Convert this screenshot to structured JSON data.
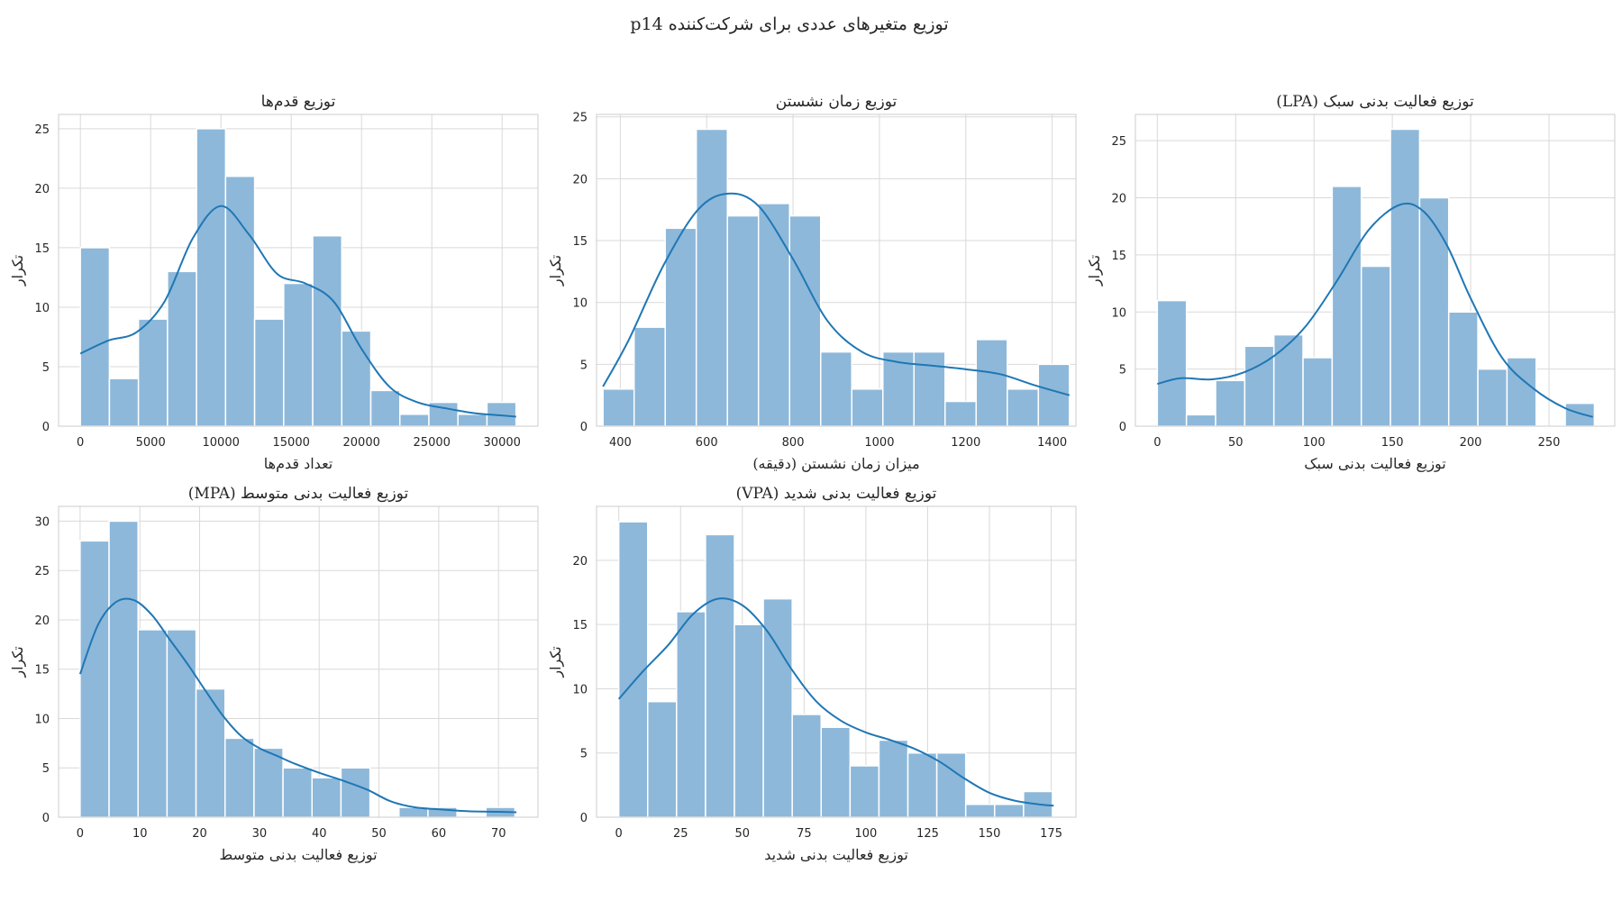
{
  "figure": {
    "title": "توزیع متغیرهای عددی برای شرکت‌کننده p14"
  },
  "colors": {
    "bar": "#8db8da",
    "bar_edge": "#ffffff",
    "kde": "#1f77b4",
    "grid": "#d9d9d9",
    "frame": "#cccccc"
  },
  "chart_data": [
    {
      "type": "bar",
      "title": "توزیع قدم‌ها",
      "xlabel": "تعداد قدم‌ها",
      "ylabel": "تکرار",
      "xlim": [
        -1550,
        32550
      ],
      "ylim": [
        0,
        26.2
      ],
      "xticks": [
        0,
        5000,
        10000,
        15000,
        20000,
        25000,
        30000
      ],
      "yticks": [
        0,
        5,
        10,
        15,
        20,
        25
      ],
      "bin_start": 0,
      "bin_width": 2066,
      "values": [
        15,
        4,
        9,
        13,
        25,
        21,
        9,
        12,
        16,
        8,
        3,
        1,
        2,
        1,
        2
      ],
      "kde": [
        [
          0,
          6.1
        ],
        [
          2000,
          7.2
        ],
        [
          4000,
          7.9
        ],
        [
          6000,
          10.5
        ],
        [
          8000,
          15.8
        ],
        [
          10000,
          18.5
        ],
        [
          12000,
          16.1
        ],
        [
          14000,
          12.8
        ],
        [
          16000,
          12.0
        ],
        [
          18000,
          10.5
        ],
        [
          20000,
          6.5
        ],
        [
          22000,
          3.3
        ],
        [
          24000,
          2.0
        ],
        [
          26000,
          1.5
        ],
        [
          28000,
          1.1
        ],
        [
          30000,
          0.9
        ],
        [
          31000,
          0.8
        ]
      ]
    },
    {
      "type": "bar",
      "title": "توزیع زمان نشستن",
      "xlabel": "میزان زمان نشستن (دقیقه)",
      "ylabel": "تکرار",
      "xlim": [
        345,
        1455
      ],
      "ylim": [
        0,
        25.2
      ],
      "xticks": [
        400,
        600,
        800,
        1000,
        1200,
        1400
      ],
      "yticks": [
        0,
        5,
        10,
        15,
        20,
        25
      ],
      "bin_start": 360,
      "bin_width": 72,
      "values": [
        3,
        8,
        16,
        24,
        17,
        18,
        17,
        6,
        3,
        6,
        6,
        2,
        7,
        3,
        5
      ],
      "kde": [
        [
          360,
          3.2
        ],
        [
          420,
          7.0
        ],
        [
          500,
          13.0
        ],
        [
          580,
          17.5
        ],
        [
          650,
          18.8
        ],
        [
          720,
          17.8
        ],
        [
          800,
          13.5
        ],
        [
          880,
          8.5
        ],
        [
          960,
          6.0
        ],
        [
          1040,
          5.2
        ],
        [
          1120,
          4.9
        ],
        [
          1200,
          4.6
        ],
        [
          1280,
          4.2
        ],
        [
          1360,
          3.3
        ],
        [
          1440,
          2.5
        ]
      ]
    },
    {
      "type": "bar",
      "title": "توزیع فعالیت بدنی سبک (LPA)",
      "xlabel": "توزیع فعالیت بدنی سبک",
      "ylabel": "تکرار",
      "xlim": [
        -14,
        292
      ],
      "ylim": [
        0,
        27.3
      ],
      "xticks": [
        0,
        50,
        100,
        150,
        200,
        250
      ],
      "yticks": [
        0,
        5,
        10,
        15,
        20,
        25
      ],
      "bin_start": 0,
      "bin_width": 18.6,
      "values": [
        11,
        1,
        4,
        7,
        8,
        6,
        21,
        14,
        26,
        20,
        10,
        5,
        6,
        0,
        2
      ],
      "kde": [
        [
          0,
          3.7
        ],
        [
          15,
          4.2
        ],
        [
          35,
          4.1
        ],
        [
          55,
          4.7
        ],
        [
          75,
          6.2
        ],
        [
          95,
          8.8
        ],
        [
          115,
          12.8
        ],
        [
          135,
          17.2
        ],
        [
          155,
          19.4
        ],
        [
          170,
          18.8
        ],
        [
          185,
          15.8
        ],
        [
          200,
          11.2
        ],
        [
          220,
          6.0
        ],
        [
          240,
          3.3
        ],
        [
          260,
          1.6
        ],
        [
          278,
          0.8
        ]
      ]
    },
    {
      "type": "bar",
      "title": "توزیع فعالیت بدنی متوسط (MPA)",
      "xlabel": "توزیع فعالیت بدنی متوسط",
      "ylabel": "تکرار",
      "xlim": [
        -3.6,
        76.6
      ],
      "ylim": [
        0,
        31.5
      ],
      "xticks": [
        0,
        10,
        20,
        30,
        40,
        50,
        60,
        70
      ],
      "yticks": [
        0,
        5,
        10,
        15,
        20,
        25,
        30
      ],
      "bin_start": 0,
      "bin_width": 4.85,
      "values": [
        28,
        30,
        19,
        19,
        13,
        8,
        7,
        5,
        4,
        5,
        0,
        1,
        1,
        0,
        1
      ],
      "kde": [
        [
          0,
          14.5
        ],
        [
          3,
          19.5
        ],
        [
          6,
          21.8
        ],
        [
          9,
          22.0
        ],
        [
          12,
          20.5
        ],
        [
          15,
          18.0
        ],
        [
          18,
          15.5
        ],
        [
          21,
          12.8
        ],
        [
          24,
          10.2
        ],
        [
          27,
          8.2
        ],
        [
          30,
          7.0
        ],
        [
          33,
          6.2
        ],
        [
          36,
          5.4
        ],
        [
          40,
          4.5
        ],
        [
          44,
          3.7
        ],
        [
          48,
          2.8
        ],
        [
          52,
          1.6
        ],
        [
          56,
          1.0
        ],
        [
          60,
          0.8
        ],
        [
          65,
          0.6
        ],
        [
          70,
          0.55
        ],
        [
          73,
          0.5
        ]
      ]
    },
    {
      "type": "bar",
      "title": "توزیع فعالیت بدنی شدید (VPA)",
      "xlabel": "توزیع فعالیت بدنی شدید",
      "ylabel": "تکرار",
      "xlim": [
        -9,
        185
      ],
      "ylim": [
        0,
        24.2
      ],
      "xticks": [
        0,
        25,
        50,
        75,
        100,
        125,
        150,
        175
      ],
      "yticks": [
        0,
        5,
        10,
        15,
        20
      ],
      "bin_start": 0,
      "bin_width": 11.7,
      "values": [
        23,
        9,
        16,
        22,
        15,
        17,
        8,
        7,
        4,
        6,
        5,
        5,
        1,
        1,
        2
      ],
      "kde": [
        [
          0,
          9.2
        ],
        [
          10,
          11.4
        ],
        [
          20,
          13.4
        ],
        [
          30,
          15.8
        ],
        [
          40,
          17.0
        ],
        [
          50,
          16.5
        ],
        [
          60,
          14.5
        ],
        [
          70,
          11.5
        ],
        [
          80,
          9.0
        ],
        [
          90,
          7.5
        ],
        [
          100,
          6.6
        ],
        [
          110,
          6.0
        ],
        [
          120,
          5.3
        ],
        [
          130,
          4.3
        ],
        [
          140,
          3.0
        ],
        [
          150,
          1.9
        ],
        [
          160,
          1.3
        ],
        [
          170,
          1.0
        ],
        [
          176,
          0.9
        ]
      ]
    }
  ]
}
